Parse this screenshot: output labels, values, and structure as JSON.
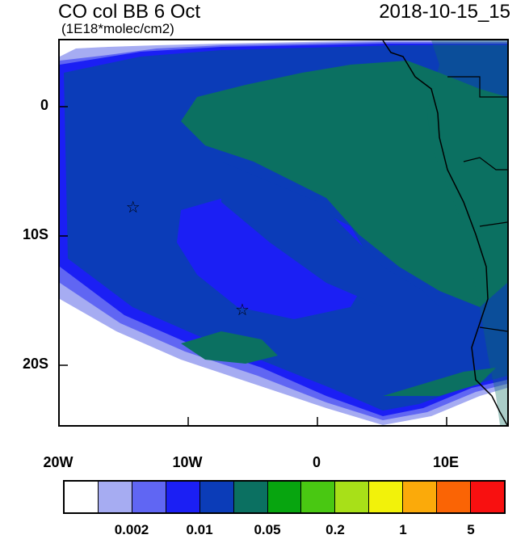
{
  "header": {
    "title": "CO col BB 6 Oct",
    "units": "(1E18*molec/cm2)",
    "datetime": "2018-10-15_15"
  },
  "axes": {
    "lat_labels": [
      "0",
      "10S",
      "20S"
    ],
    "lon_labels": [
      "20W",
      "10W",
      "0",
      "10E"
    ]
  },
  "markers": {
    "symbol": "☆",
    "points": [
      {
        "lon": -14.3,
        "lat": -8.0
      },
      {
        "lon": -5.8,
        "lat": -16.0
      }
    ]
  },
  "colorbar": {
    "colors": [
      "#ffffff",
      "#a6acf2",
      "#6066f3",
      "#1b1ff4",
      "#0b3cb8",
      "#0b7061",
      "#07a50f",
      "#49c812",
      "#a8e018",
      "#f2f20a",
      "#fbaa0a",
      "#fa6405",
      "#f81010"
    ],
    "labels": [
      "0.002",
      "0.01",
      "0.05",
      "0.2",
      "1",
      "5"
    ]
  }
}
